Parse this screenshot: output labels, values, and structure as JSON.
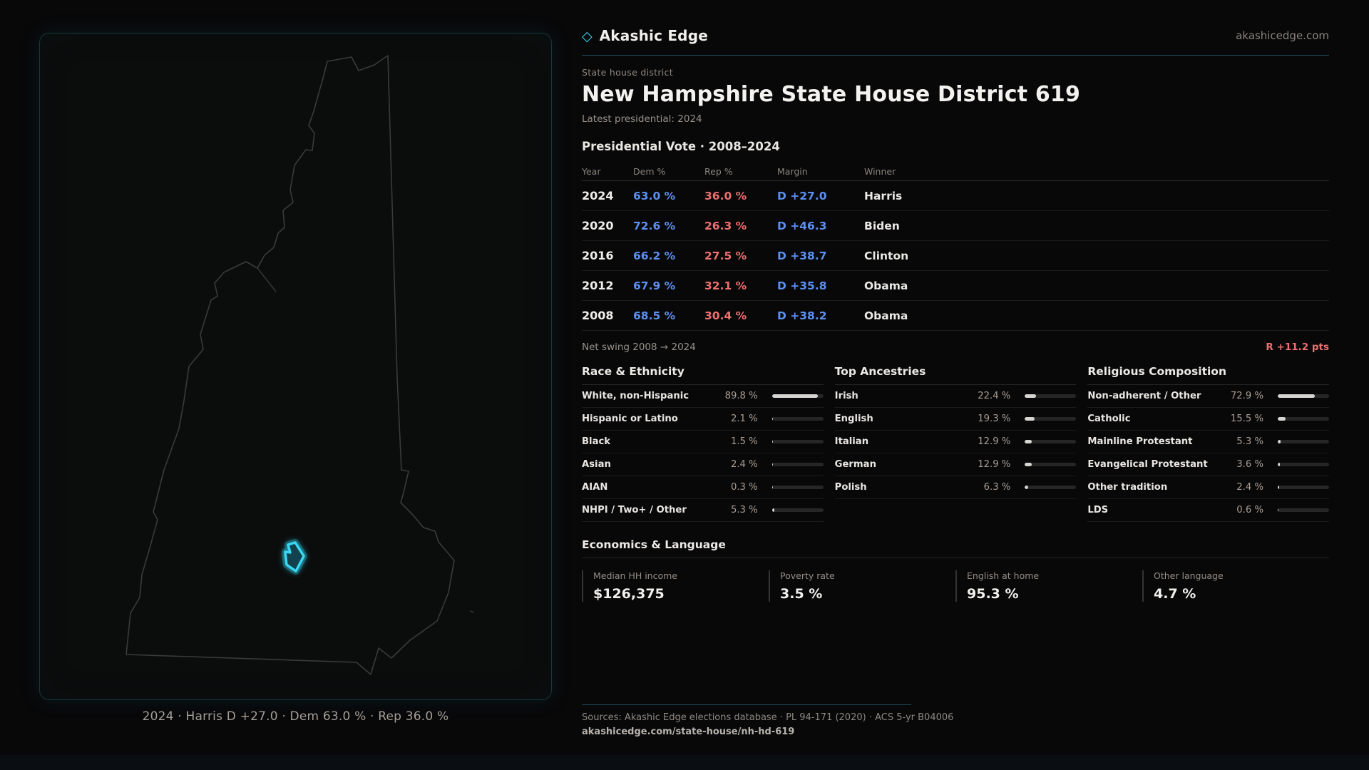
{
  "brand": {
    "logo_icon": "diamond-icon",
    "name": "Akashic Edge",
    "domain": "akashicedge.com"
  },
  "page": {
    "eyebrow": "State house district",
    "title": "New Hampshire State House District 619",
    "subtitle": "Latest presidential: 2024"
  },
  "map": {
    "caption": "2024 · Harris D +27.0 · Dem 63.0 % · Rep 36.0 %"
  },
  "vote_table": {
    "title": "Presidential Vote · 2008–2024",
    "columns": [
      "Year",
      "Dem %",
      "Rep %",
      "Margin",
      "Winner"
    ],
    "rows": [
      {
        "year": "2024",
        "dem": "63.0 %",
        "rep": "36.0 %",
        "margin": "D +27.0",
        "winner": "Harris"
      },
      {
        "year": "2020",
        "dem": "72.6 %",
        "rep": "26.3 %",
        "margin": "D +46.3",
        "winner": "Biden"
      },
      {
        "year": "2016",
        "dem": "66.2 %",
        "rep": "27.5 %",
        "margin": "D +38.7",
        "winner": "Clinton"
      },
      {
        "year": "2012",
        "dem": "67.9 %",
        "rep": "32.1 %",
        "margin": "D +35.8",
        "winner": "Obama"
      },
      {
        "year": "2008",
        "dem": "68.5 %",
        "rep": "30.4 %",
        "margin": "D +38.2",
        "winner": "Obama"
      }
    ],
    "swing_label": "Net swing 2008 → 2024",
    "swing_value": "R +11.2 pts"
  },
  "demographics": {
    "race": {
      "title": "Race & Ethnicity",
      "rows": [
        {
          "label": "White, non-Hispanic",
          "value": "89.8 %",
          "pct": 89.8
        },
        {
          "label": "Hispanic or Latino",
          "value": "2.1 %",
          "pct": 2.1
        },
        {
          "label": "Black",
          "value": "1.5 %",
          "pct": 1.5
        },
        {
          "label": "Asian",
          "value": "2.4 %",
          "pct": 2.4
        },
        {
          "label": "AIAN",
          "value": "0.3 %",
          "pct": 0.3
        },
        {
          "label": "NHPI / Two+ / Other",
          "value": "5.3 %",
          "pct": 5.3
        }
      ]
    },
    "ancestries": {
      "title": "Top Ancestries",
      "rows": [
        {
          "label": "Irish",
          "value": "22.4 %",
          "pct": 22.4
        },
        {
          "label": "English",
          "value": "19.3 %",
          "pct": 19.3
        },
        {
          "label": "Italian",
          "value": "12.9 %",
          "pct": 12.9
        },
        {
          "label": "German",
          "value": "12.9 %",
          "pct": 12.9
        },
        {
          "label": "Polish",
          "value": "6.3 %",
          "pct": 6.3
        }
      ]
    },
    "religion": {
      "title": "Religious Composition",
      "rows": [
        {
          "label": "Non-adherent / Other",
          "value": "72.9 %",
          "pct": 72.9
        },
        {
          "label": "Catholic",
          "value": "15.5 %",
          "pct": 15.5
        },
        {
          "label": "Mainline Protestant",
          "value": "5.3 %",
          "pct": 5.3
        },
        {
          "label": "Evangelical Protestant",
          "value": "3.6 %",
          "pct": 3.6
        },
        {
          "label": "Other tradition",
          "value": "2.4 %",
          "pct": 2.4
        },
        {
          "label": "LDS",
          "value": "0.6 %",
          "pct": 0.6
        }
      ]
    }
  },
  "economics": {
    "title": "Economics & Language",
    "stats": [
      {
        "label": "Median HH income",
        "value": "$126,375"
      },
      {
        "label": "Poverty rate",
        "value": "3.5 %"
      },
      {
        "label": "English at home",
        "value": "95.3 %"
      },
      {
        "label": "Other language",
        "value": "4.7 %"
      }
    ]
  },
  "footer": {
    "sources": "Sources: Akashic Edge elections database · PL 94-171 (2020) · ACS 5-yr B04006",
    "permalink": "akashicedge.com/state-house/nh-hd-619"
  },
  "colors": {
    "accent": "#2fd6f2",
    "dem": "#5b8ff0",
    "rep": "#ee6f6f"
  }
}
